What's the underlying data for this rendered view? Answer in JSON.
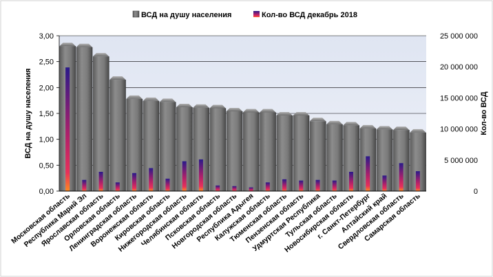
{
  "chart_data": {
    "type": "bar",
    "categories": [
      "Московская область",
      "Республика Марий Эл",
      "Ярославская область",
      "Орловская область",
      "Ленинградская область",
      "Воронежская область",
      "Кировская область",
      "Нижегородская область",
      "Челябинская область",
      "Псковская область",
      "Новгородская область",
      "Республика Адыгея",
      "Калужская область",
      "Тюменская область",
      "Пензенская область",
      "Удмуртская Республика",
      "Тульская область",
      "Новосибирская область",
      "г. Санкт-Петербург",
      "Алтайский край",
      "Свердловская область",
      "Самарская область"
    ],
    "series": [
      {
        "name": "ВСД на душу населения",
        "axis": "left",
        "color": "#7f7f7f",
        "values": [
          2.8,
          2.78,
          2.6,
          2.15,
          1.78,
          1.74,
          1.72,
          1.62,
          1.61,
          1.6,
          1.54,
          1.52,
          1.52,
          1.46,
          1.46,
          1.35,
          1.29,
          1.27,
          1.21,
          1.19,
          1.18,
          1.13
        ]
      },
      {
        "name": "Кол-во ВСД декабрь 2018",
        "axis": "right",
        "color": "#3a1f8f",
        "values": [
          19900000,
          1800000,
          3100000,
          1400000,
          2900000,
          3700000,
          2000000,
          4800000,
          5100000,
          900000,
          800000,
          600000,
          1400000,
          1900000,
          1700000,
          1800000,
          1700000,
          3100000,
          5600000,
          2500000,
          4500000,
          3200000
        ]
      }
    ],
    "y_left": {
      "label": "ВСД на душу населения",
      "ylim": [
        0,
        3
      ],
      "ticks": [
        "0,00",
        "0,50",
        "1,00",
        "1,50",
        "2,00",
        "2,50",
        "3,00"
      ]
    },
    "y_right": {
      "label": "Кол-во ВСД",
      "ylim": [
        0,
        25000000
      ],
      "ticks": [
        "0",
        "5 000 000",
        "10 000 000",
        "15 000 000",
        "20 000 000",
        "25 000 000"
      ]
    },
    "grid": true,
    "legend_position": "top-center",
    "plot_background": "#e6ebf5"
  }
}
